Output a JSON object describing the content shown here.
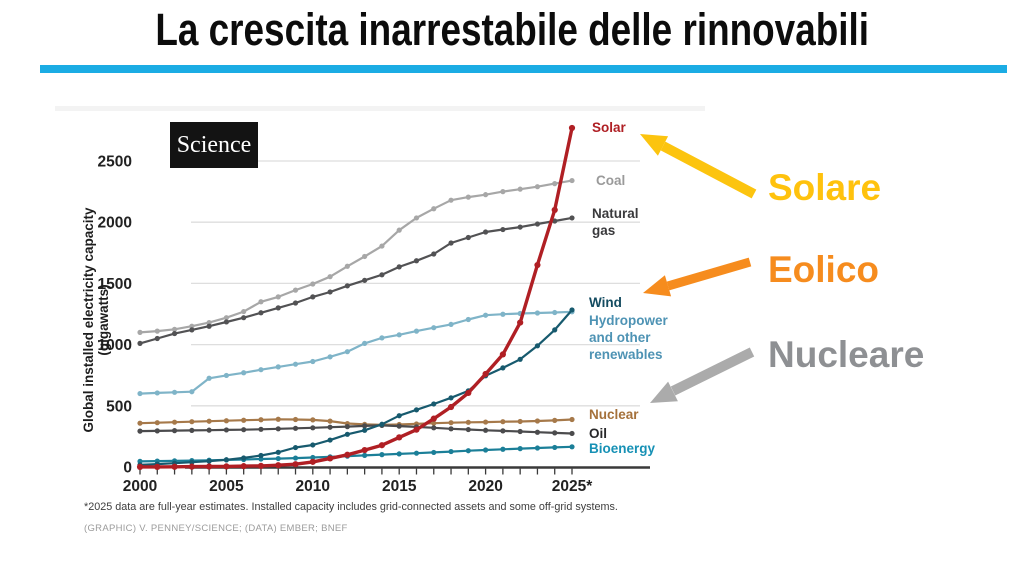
{
  "slide": {
    "title": "La crescita inarrestabile delle rinnovabili",
    "accent_color": "#1bace4"
  },
  "annotations": {
    "solar": {
      "label": "Solare",
      "color": "#ffc20d",
      "arrow_color": "#fcc40f"
    },
    "wind": {
      "label": "Eolico",
      "color": "#f68c1e",
      "arrow_color": "#f68c1e"
    },
    "nuclear": {
      "label": "Nucleare",
      "color": "#8e9093",
      "arrow_color": "#ababab"
    }
  },
  "chart": {
    "logo": "Science",
    "ylabel": "Global installed electricity capacity (gigawatts)",
    "footnote": "*2025 data are full-year estimates. Installed capacity includes grid-connected assets and some off-grid systems.",
    "credit": "(GRAPHIC) V. PENNEY/SCIENCE; (DATA) EMBER; BNEF"
  },
  "chart_data": {
    "type": "line",
    "title": "",
    "xlabel": "",
    "ylabel": "Global installed electricity capacity (gigawatts)",
    "x": [
      2000,
      2001,
      2002,
      2003,
      2004,
      2005,
      2006,
      2007,
      2008,
      2009,
      2010,
      2011,
      2012,
      2013,
      2014,
      2015,
      2016,
      2017,
      2018,
      2019,
      2020,
      2021,
      2022,
      2023,
      2024,
      2025
    ],
    "x_tick_years": [
      2000,
      2005,
      2010,
      2015,
      2020,
      2025
    ],
    "x_tick_labels": [
      "2000",
      "2005",
      "2010",
      "2015",
      "2020",
      "2025*"
    ],
    "y_ticks": [
      0,
      500,
      1000,
      1500,
      2000,
      2500
    ],
    "ylim": [
      0,
      2870
    ],
    "grid": true,
    "legend_position": "right-end-labels",
    "series": [
      {
        "name": "Solar",
        "color": "#b01f24",
        "label_color": "#af1f24",
        "values": [
          1,
          1,
          2,
          3,
          4,
          5,
          7,
          9,
          15,
          23,
          42,
          70,
          100,
          138,
          178,
          242,
          305,
          395,
          490,
          605,
          760,
          920,
          1180,
          1650,
          2100,
          2770
        ]
      },
      {
        "name": "Coal",
        "color": "#a7a7a7",
        "label_color": "#9a9a9a",
        "values": [
          1100,
          1110,
          1125,
          1150,
          1180,
          1220,
          1270,
          1350,
          1390,
          1445,
          1495,
          1555,
          1640,
          1720,
          1805,
          1935,
          2035,
          2110,
          2180,
          2205,
          2225,
          2250,
          2270,
          2290,
          2315,
          2340
        ]
      },
      {
        "name": "Natural gas",
        "color": "#525254",
        "label_color": "#3a3a3c",
        "values": [
          1010,
          1050,
          1090,
          1120,
          1150,
          1185,
          1220,
          1260,
          1300,
          1340,
          1390,
          1430,
          1480,
          1525,
          1570,
          1635,
          1685,
          1740,
          1830,
          1875,
          1920,
          1940,
          1960,
          1985,
          2010,
          2035
        ]
      },
      {
        "name": "Wind",
        "color": "#175a6e",
        "label_color": "#134b60",
        "values": [
          18,
          24,
          31,
          39,
          48,
          59,
          74,
          94,
          120,
          159,
          180,
          220,
          267,
          300,
          349,
          419,
          467,
          515,
          565,
          622,
          745,
          810,
          880,
          990,
          1120,
          1283
        ]
      },
      {
        "name": "Hydropower and other renewables",
        "color": "#7fb4c8",
        "label_color": "#4e93b4",
        "values": [
          600,
          605,
          610,
          615,
          725,
          748,
          770,
          795,
          818,
          840,
          862,
          900,
          942,
          1010,
          1055,
          1080,
          1110,
          1138,
          1165,
          1205,
          1240,
          1248,
          1254,
          1258,
          1262,
          1268
        ]
      },
      {
        "name": "Nuclear",
        "color": "#a6794a",
        "label_color": "#a5713b",
        "values": [
          358,
          362,
          366,
          370,
          374,
          378,
          382,
          386,
          390,
          388,
          385,
          375,
          355,
          348,
          345,
          347,
          352,
          358,
          362,
          365,
          367,
          370,
          372,
          376,
          381,
          388
        ]
      },
      {
        "name": "Oil",
        "color": "#4b4b4d",
        "label_color": "#28282a",
        "values": [
          293,
          295,
          297,
          299,
          301,
          303,
          305,
          308,
          312,
          316,
          320,
          325,
          330,
          336,
          340,
          334,
          328,
          320,
          312,
          306,
          300,
          295,
          290,
          284,
          279,
          274
        ]
      },
      {
        "name": "Bioenergy",
        "color": "#1b7f98",
        "label_color": "#1791b5",
        "values": [
          46,
          48,
          50,
          52,
          55,
          58,
          61,
          65,
          69,
          73,
          78,
          83,
          89,
          95,
          101,
          107,
          113,
          119,
          126,
          133,
          139,
          145,
          150,
          155,
          160,
          165
        ]
      }
    ]
  }
}
